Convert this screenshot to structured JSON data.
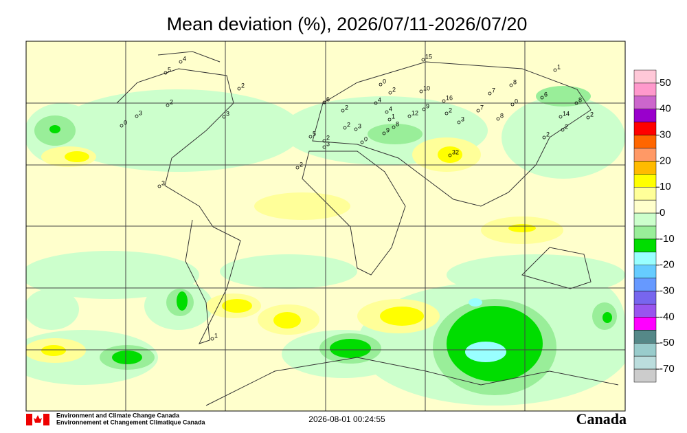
{
  "title": "Mean deviation (%), 2026/07/11-2026/07/20",
  "legend": {
    "colors": [
      "#ffc8d8",
      "#ff99cc",
      "#cc66cc",
      "#9900cc",
      "#ff0000",
      "#ff6600",
      "#ff9966",
      "#ffbb00",
      "#ffff00",
      "#ffff99",
      "#ffffcc",
      "#ccffcc",
      "#99ee99",
      "#00dd00",
      "#99ffff",
      "#66ccff",
      "#6699ff",
      "#7766ee",
      "#9955ee",
      "#ff00ff",
      "#558888",
      "#99cccc",
      "#bbdddd",
      "#cccccc"
    ],
    "labels": [
      50,
      40,
      30,
      20,
      10,
      0,
      -10,
      -20,
      -30,
      -40,
      -50,
      -70
    ]
  },
  "stations": [
    "4",
    "5",
    "2",
    "2",
    "3",
    "0",
    "3",
    "2",
    "3",
    "15",
    "0",
    "6",
    "2",
    "10",
    "16",
    "7",
    "8",
    "1",
    "4",
    "6",
    "0",
    "8",
    "2",
    "4",
    "12",
    "9",
    "2",
    "7",
    "3",
    "8",
    "14",
    "2",
    "2",
    "2",
    "1",
    "8",
    "2",
    "3",
    "5",
    "2",
    "3",
    "0",
    "32",
    "1",
    "9"
  ],
  "footer": {
    "agency_en": "Environment and Climate Change Canada",
    "agency_fr": "Environnement et Changement Climatique Canada",
    "timestamp": "2026-08-01 00:24:55",
    "wordmark": "Canada"
  }
}
